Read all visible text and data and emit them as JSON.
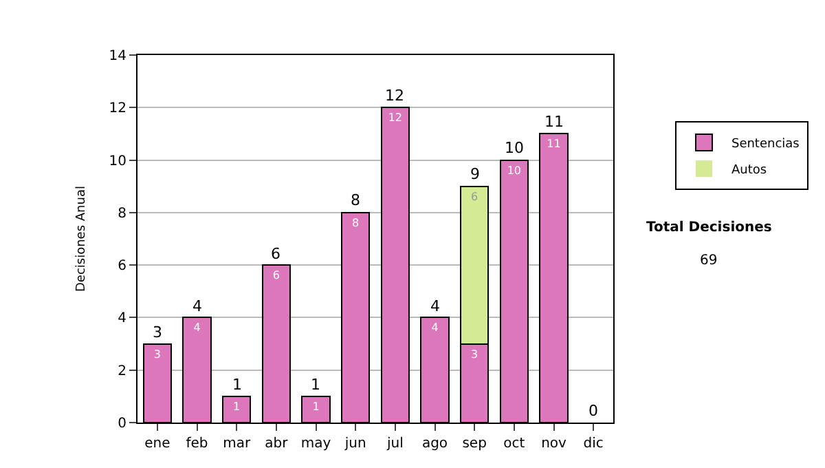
{
  "chart_data": {
    "type": "bar",
    "stacked": true,
    "ylabel": "Decisiones Anual",
    "categories": [
      "ene",
      "feb",
      "mar",
      "abr",
      "may",
      "jun",
      "jul",
      "ago",
      "sep",
      "oct",
      "nov",
      "dic"
    ],
    "series": [
      {
        "name": "Sentencias",
        "color": "#dd77bb",
        "values": [
          3,
          4,
          1,
          6,
          1,
          8,
          12,
          4,
          3,
          10,
          11,
          0
        ],
        "value_labels": [
          "3",
          "4",
          "1",
          "6",
          "1",
          "8",
          "12",
          "4",
          "3",
          "10",
          "11",
          null
        ]
      },
      {
        "name": "Autos",
        "color": "#d4ea94",
        "values": [
          0,
          0,
          0,
          0,
          0,
          0,
          0,
          0,
          6,
          0,
          0,
          0
        ],
        "value_labels": [
          null,
          null,
          null,
          null,
          null,
          null,
          null,
          null,
          "6",
          null,
          null,
          null
        ]
      }
    ],
    "totals": [
      "3",
      "4",
      "1",
      "6",
      "1",
      "8",
      "12",
      "4",
      "9",
      "10",
      "11",
      "0"
    ],
    "ylim": [
      0,
      14
    ],
    "yticks": [
      0,
      2,
      4,
      6,
      8,
      10,
      12,
      14
    ],
    "grid": "y",
    "legend": "right",
    "annotations": [
      "Total Decisiones",
      "69"
    ]
  }
}
